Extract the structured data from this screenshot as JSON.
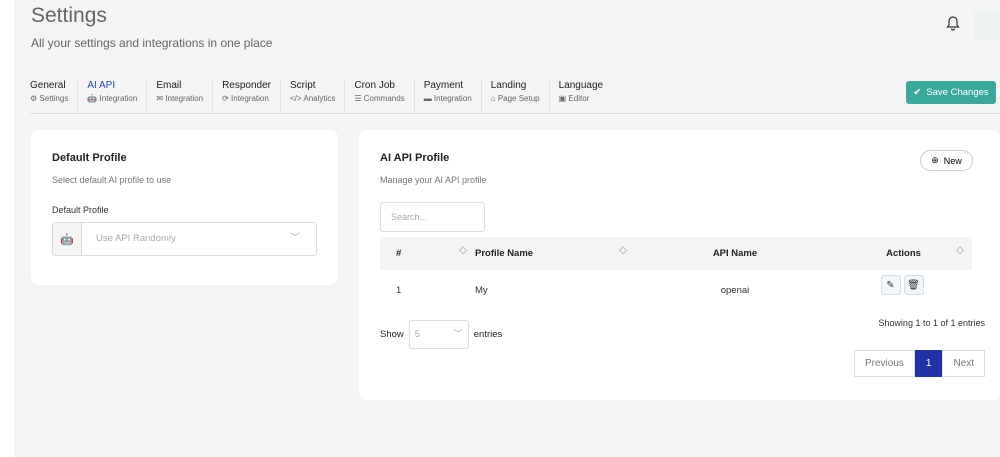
{
  "header": {
    "title": "Settings",
    "subtitle": "All your settings and integrations in one place"
  },
  "tabs": [
    {
      "label": "General",
      "sub": "Settings",
      "icon": "⚙"
    },
    {
      "label": "AI API",
      "sub": "Integration",
      "icon": "🤖"
    },
    {
      "label": "Email",
      "sub": "Integration",
      "icon": "✉"
    },
    {
      "label": "Responder",
      "sub": "Integration",
      "icon": "⟳"
    },
    {
      "label": "Script",
      "sub": "Analytics",
      "icon": "</>"
    },
    {
      "label": "Cron Job",
      "sub": "Commands",
      "icon": "☰"
    },
    {
      "label": "Payment",
      "sub": "Integration",
      "icon": "▬"
    },
    {
      "label": "Landing",
      "sub": "Page Setup",
      "icon": "⌂"
    },
    {
      "label": "Language",
      "sub": "Editor",
      "icon": "▣"
    }
  ],
  "active_tab": "AI API",
  "save_label": "Save Changes",
  "colors": {
    "accent": "#3aa99b",
    "active_tab": "#2747c7",
    "page_active": "#2233aa"
  },
  "default_profile": {
    "title": "Default Profile",
    "desc": "Select default AI profile to use",
    "field_label": "Default Profile",
    "value": "Use API Randomly"
  },
  "api_profile": {
    "title": "AI API Profile",
    "desc": "Manage your AI API profile",
    "new_label": "New",
    "search_placeholder": "Search...",
    "columns": [
      "#",
      "Profile Name",
      "API Name",
      "Actions"
    ],
    "rows": [
      {
        "num": "1",
        "profile": "My",
        "api": "openai"
      }
    ],
    "show_label": "Show",
    "page_size": "5",
    "entries_label": "entries",
    "info": "Showing 1 to 1 of 1 entries",
    "prev": "Previous",
    "page": "1",
    "next": "Next"
  }
}
